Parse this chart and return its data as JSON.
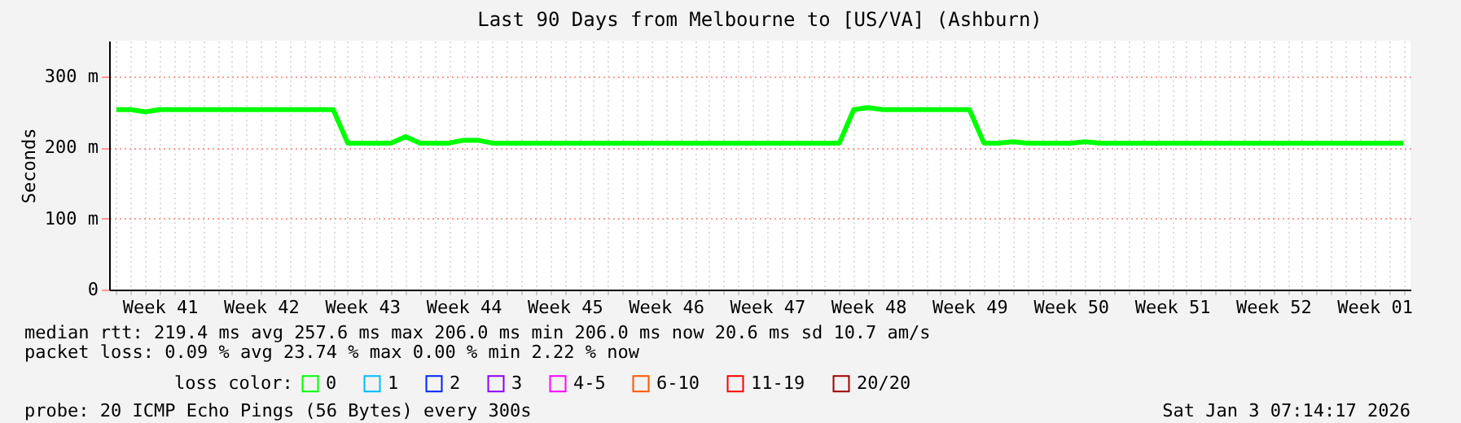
{
  "chart_data": {
    "type": "line",
    "title": "Last 90 Days from Melbourne to [US/VA] (Ashburn)",
    "ylabel": "Seconds",
    "categories": [
      null,
      null,
      null,
      "Week 41",
      null,
      null,
      null,
      null,
      null,
      null,
      "Week 42",
      null,
      null,
      null,
      null,
      null,
      null,
      "Week 43",
      null,
      null,
      null,
      null,
      null,
      null,
      "Week 44",
      null,
      null,
      null,
      null,
      null,
      null,
      "Week 45",
      null,
      null,
      null,
      null,
      null,
      null,
      "Week 46",
      null,
      null,
      null,
      null,
      null,
      null,
      "Week 47",
      null,
      null,
      null,
      null,
      null,
      null,
      "Week 48",
      null,
      null,
      null,
      null,
      null,
      null,
      "Week 49",
      null,
      null,
      null,
      null,
      null,
      null,
      "Week 50",
      null,
      null,
      null,
      null,
      null,
      null,
      "Week 51",
      null,
      null,
      null,
      null,
      null,
      null,
      "Week 52",
      null,
      null,
      null,
      null,
      null,
      null,
      "Week 01",
      null,
      null
    ],
    "ylim": [
      0,
      350
    ],
    "yticks": [
      0,
      {
        "value": 100,
        "label": "100 m"
      },
      {
        "value": 200,
        "label": "200 m"
      },
      {
        "value": 300,
        "label": "300 m"
      }
    ],
    "grid": true,
    "legend": "bottom",
    "legend_title": "loss color:",
    "line_style": "solid",
    "series": [
      {
        "name": "0",
        "color": "#00ff00",
        "values": [
          253,
          253,
          250,
          253,
          253,
          253,
          253,
          253,
          253,
          253,
          253,
          253,
          253,
          253,
          253,
          253,
          206,
          206,
          206,
          206,
          215,
          206,
          206,
          206,
          210,
          210,
          206,
          206,
          206,
          206,
          206,
          206,
          206,
          206,
          206,
          206,
          206,
          206,
          206,
          206,
          206,
          206,
          206,
          206,
          206,
          206,
          206,
          206,
          206,
          206,
          206,
          253,
          256,
          253,
          253,
          253,
          253,
          253,
          253,
          253,
          206,
          206,
          208,
          206,
          206,
          206,
          206,
          208,
          206,
          206,
          206,
          206,
          206,
          206,
          206,
          206,
          206,
          206,
          206,
          206,
          206,
          206,
          206,
          206,
          206,
          206,
          206,
          206,
          206,
          206
        ]
      },
      {
        "name": "1",
        "color": "#00bbff",
        "values": [
          null,
          null,
          null,
          null,
          null,
          null,
          null,
          null,
          null,
          null,
          null,
          null,
          null,
          null,
          null,
          null,
          null,
          null,
          null,
          null,
          null,
          null,
          null,
          null,
          null,
          null,
          null,
          null,
          null,
          null,
          null,
          null,
          null,
          null,
          null,
          null,
          null,
          null,
          null,
          null,
          null,
          null,
          null,
          null,
          null,
          null,
          null,
          null,
          null,
          null,
          null,
          null,
          null,
          null,
          null,
          null,
          null,
          null,
          null,
          null,
          null,
          null,
          null,
          null,
          null,
          null,
          null,
          null,
          null,
          null,
          null,
          null,
          null,
          null,
          null,
          null,
          null,
          null,
          null,
          null,
          null,
          null,
          null,
          null,
          null,
          null,
          null,
          null,
          null,
          null
        ]
      },
      {
        "name": "2",
        "color": "#0022ff",
        "values": [
          null,
          null,
          null,
          null,
          null,
          null,
          null,
          null,
          null,
          null,
          null,
          null,
          null,
          null,
          null,
          null,
          null,
          null,
          null,
          null,
          null,
          null,
          null,
          null,
          null,
          null,
          null,
          null,
          null,
          null,
          null,
          null,
          null,
          null,
          null,
          null,
          null,
          null,
          null,
          null,
          null,
          null,
          null,
          null,
          null,
          null,
          null,
          null,
          null,
          null,
          null,
          null,
          null,
          null,
          null,
          null,
          null,
          null,
          null,
          null,
          null,
          null,
          null,
          null,
          null,
          null,
          null,
          null,
          null,
          null,
          null,
          null,
          null,
          null,
          null,
          null,
          null,
          null,
          null,
          null,
          null,
          null,
          null,
          null,
          null,
          null,
          null,
          null,
          null,
          null
        ]
      },
      {
        "name": "3",
        "color": "#8a00ff",
        "values": [
          null,
          null,
          null,
          null,
          null,
          null,
          null,
          null,
          null,
          null,
          null,
          null,
          null,
          null,
          null,
          null,
          null,
          null,
          null,
          null,
          null,
          null,
          null,
          null,
          null,
          null,
          null,
          null,
          null,
          null,
          null,
          null,
          null,
          null,
          null,
          null,
          null,
          null,
          null,
          null,
          null,
          null,
          null,
          null,
          null,
          null,
          null,
          null,
          null,
          null,
          null,
          null,
          null,
          null,
          null,
          null,
          null,
          null,
          null,
          null,
          null,
          null,
          null,
          null,
          null,
          null,
          null,
          null,
          null,
          null,
          null,
          null,
          null,
          null,
          null,
          null,
          null,
          null,
          null,
          null,
          null,
          null,
          null,
          null,
          null,
          null,
          null,
          null,
          null,
          null
        ]
      },
      {
        "name": "4-5",
        "color": "#ff00ff",
        "values": [
          null,
          null,
          null,
          null,
          null,
          null,
          null,
          null,
          null,
          null,
          null,
          null,
          null,
          null,
          null,
          null,
          null,
          null,
          null,
          null,
          null,
          null,
          null,
          null,
          null,
          null,
          null,
          null,
          null,
          null,
          null,
          null,
          null,
          null,
          null,
          null,
          null,
          null,
          null,
          null,
          null,
          null,
          null,
          null,
          null,
          null,
          null,
          null,
          null,
          null,
          null,
          null,
          null,
          null,
          null,
          null,
          null,
          null,
          null,
          null,
          null,
          null,
          null,
          null,
          null,
          null,
          null,
          null,
          null,
          null,
          null,
          null,
          null,
          null,
          null,
          null,
          null,
          null,
          null,
          null,
          null,
          null,
          null,
          null,
          null,
          null,
          null,
          null,
          null,
          null
        ]
      },
      {
        "name": "6-10",
        "color": "#ff5500",
        "values": [
          null,
          null,
          null,
          null,
          null,
          null,
          null,
          null,
          null,
          null,
          null,
          null,
          null,
          null,
          null,
          null,
          null,
          null,
          null,
          null,
          null,
          null,
          null,
          null,
          null,
          null,
          null,
          null,
          null,
          null,
          null,
          null,
          null,
          null,
          null,
          null,
          null,
          null,
          null,
          null,
          null,
          null,
          null,
          null,
          null,
          null,
          null,
          null,
          null,
          null,
          null,
          null,
          null,
          null,
          null,
          null,
          null,
          null,
          null,
          null,
          null,
          null,
          null,
          null,
          null,
          null,
          null,
          null,
          null,
          null,
          null,
          null,
          null,
          null,
          null,
          null,
          null,
          null,
          null,
          null,
          null,
          null,
          null,
          null,
          null,
          null,
          null,
          null,
          null,
          null
        ]
      },
      {
        "name": "11-19",
        "color": "#ff0000",
        "values": [
          null,
          null,
          null,
          null,
          null,
          null,
          null,
          null,
          null,
          null,
          null,
          null,
          null,
          null,
          null,
          null,
          null,
          null,
          null,
          null,
          null,
          null,
          null,
          null,
          null,
          null,
          null,
          null,
          null,
          null,
          null,
          null,
          null,
          null,
          null,
          null,
          null,
          null,
          null,
          null,
          null,
          null,
          null,
          null,
          null,
          null,
          null,
          null,
          null,
          null,
          null,
          null,
          null,
          null,
          null,
          null,
          null,
          null,
          null,
          null,
          null,
          null,
          null,
          null,
          null,
          null,
          null,
          null,
          null,
          null,
          null,
          null,
          null,
          null,
          null,
          null,
          null,
          null,
          null,
          null,
          null,
          null,
          null,
          null,
          null,
          null,
          null,
          null,
          null,
          null
        ]
      },
      {
        "name": "20/20",
        "color": "#a10000",
        "values": [
          null,
          null,
          null,
          null,
          null,
          null,
          null,
          null,
          null,
          null,
          null,
          null,
          null,
          null,
          null,
          null,
          null,
          null,
          null,
          null,
          null,
          null,
          null,
          null,
          null,
          null,
          null,
          null,
          null,
          null,
          null,
          null,
          null,
          null,
          null,
          null,
          null,
          null,
          null,
          null,
          null,
          null,
          null,
          null,
          null,
          null,
          null,
          null,
          null,
          null,
          null,
          null,
          null,
          null,
          null,
          null,
          null,
          null,
          null,
          null,
          null,
          null,
          null,
          null,
          null,
          null,
          null,
          null,
          null,
          null,
          null,
          null,
          null,
          null,
          null,
          null,
          null,
          null,
          null,
          null,
          null,
          null,
          null,
          null,
          null,
          null,
          null,
          null,
          null,
          null
        ]
      }
    ],
    "annotations": [
      "median rtt:  219.4 ms avg  257.6 ms max  206.0 ms min  206.0 ms now  20.6 ms sd  10.7   am/s",
      "packet loss: 0.09 % avg  23.74 % max  0.00 % min  2.22 % now",
      "probe:       20 ICMP Echo Pings (56 Bytes) every 300s",
      "Sat Jan  3 07:14:17 2026"
    ]
  }
}
